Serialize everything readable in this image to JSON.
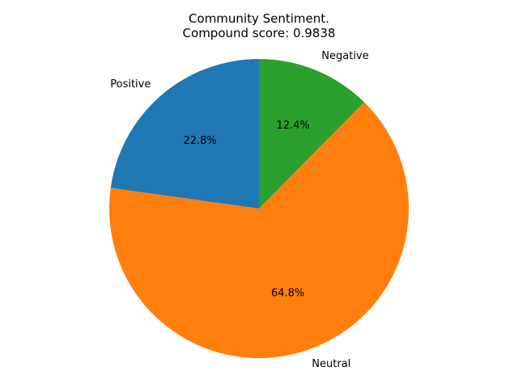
{
  "chart_data": {
    "type": "pie",
    "title": "Community Sentiment.",
    "subtitle": "Compound score: 0.9838",
    "start_angle_deg": 90,
    "direction": "counterclockwise",
    "slices": [
      {
        "label": "Positive",
        "value": 22.8,
        "pct_label": "22.8%",
        "color": "#1f77b4"
      },
      {
        "label": "Neutral",
        "value": 64.8,
        "pct_label": "64.8%",
        "color": "#ff7f0e"
      },
      {
        "label": "Negative",
        "value": 12.4,
        "pct_label": "12.4%",
        "color": "#2ca02c"
      }
    ]
  }
}
